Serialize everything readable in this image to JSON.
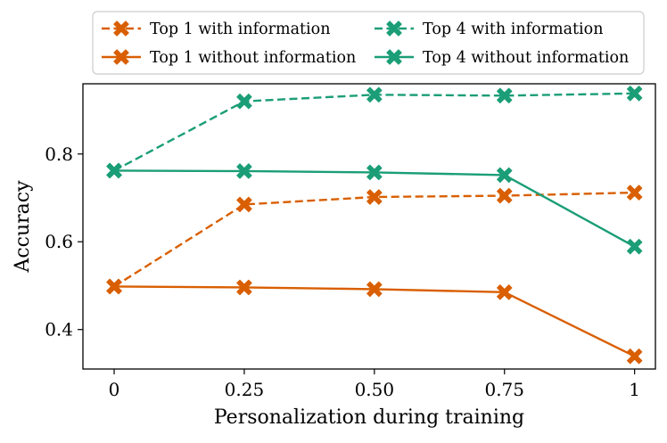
{
  "chart_data": {
    "type": "line",
    "title": "",
    "xlabel": "Personalization during training",
    "ylabel": "Accuracy",
    "x": [
      0,
      0.25,
      0.5,
      0.75,
      1
    ],
    "x_tick_labels": [
      "0",
      "0.25",
      "0.50",
      "0.75",
      "1"
    ],
    "xlim": [
      -0.06,
      1.04
    ],
    "ylim": [
      0.31,
      0.96
    ],
    "y_ticks": [
      0.4,
      0.6,
      0.8
    ],
    "y_tick_labels": [
      "0.4",
      "0.6",
      "0.8"
    ],
    "grid": false,
    "legend_position": "top, outside plot, two columns",
    "series": [
      {
        "name": "Top 1 with information",
        "values": [
          0.498,
          0.685,
          0.702,
          0.705,
          0.712
        ],
        "color": "#d95f02",
        "line_style": "dashed",
        "marker": "x-filled"
      },
      {
        "name": "Top 1 without information",
        "values": [
          0.498,
          0.496,
          0.492,
          0.485,
          0.339
        ],
        "color": "#d95f02",
        "line_style": "solid",
        "marker": "x-filled"
      },
      {
        "name": "Top 4 with information",
        "values": [
          0.762,
          0.92,
          0.935,
          0.933,
          0.938
        ],
        "color": "#1b9e77",
        "line_style": "dashed",
        "marker": "x-filled"
      },
      {
        "name": "Top 4 without information",
        "values": [
          0.762,
          0.761,
          0.758,
          0.752,
          0.589
        ],
        "color": "#1b9e77",
        "line_style": "solid",
        "marker": "x-filled"
      }
    ]
  }
}
